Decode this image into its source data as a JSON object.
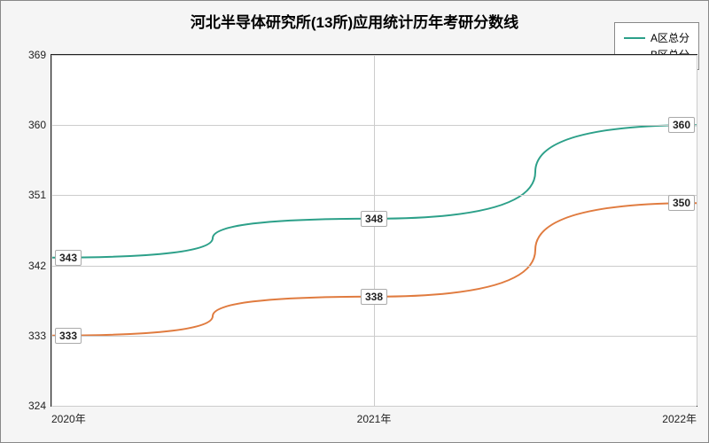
{
  "chart": {
    "type": "line",
    "title": "河北半导体研究所(13所)应用统计历年考研分数线",
    "title_fontsize": 17,
    "background_color": "#f5f5f5",
    "plot_background_color": "#ffffff",
    "border_color": "#222222",
    "grid_color": "#cccccc",
    "y": {
      "min": 324,
      "max": 369,
      "ticks": [
        324,
        333,
        342,
        351,
        360,
        369
      ]
    },
    "x": {
      "categories": [
        "2020年",
        "2021年",
        "2022年"
      ]
    },
    "series": [
      {
        "name": "A区总分",
        "color": "#2ca089",
        "line_width": 2,
        "values": [
          343,
          348,
          360
        ]
      },
      {
        "name": "B区总分",
        "color": "#e07b3f",
        "line_width": 2,
        "values": [
          333,
          338,
          350
        ]
      }
    ],
    "label_fontsize": 12,
    "label_bold": true
  }
}
